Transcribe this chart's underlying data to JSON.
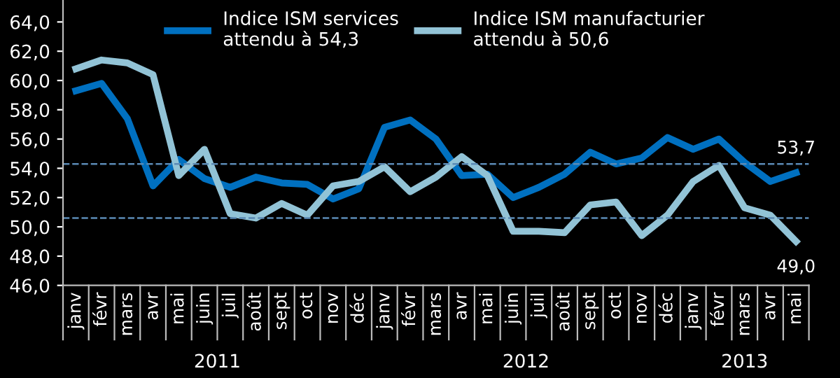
{
  "chart_data": {
    "type": "line",
    "categories": [
      "janv",
      "févr",
      "mars",
      "avr",
      "mai",
      "juin",
      "juil",
      "août",
      "sept",
      "oct",
      "nov",
      "déc",
      "janv",
      "févr",
      "mars",
      "avr",
      "mai",
      "juin",
      "juil",
      "août",
      "sept",
      "oct",
      "nov",
      "déc",
      "janv",
      "févr",
      "mars",
      "avr",
      "mai"
    ],
    "series": [
      {
        "name": "Indice ISM services\nattendu à 54,3",
        "color": "#0070c0",
        "values": [
          59.3,
          59.8,
          57.4,
          52.8,
          54.6,
          53.3,
          52.7,
          53.4,
          53.0,
          52.9,
          51.9,
          52.6,
          56.8,
          57.3,
          56.0,
          53.5,
          53.6,
          52.0,
          52.7,
          53.6,
          55.1,
          54.3,
          54.7,
          56.1,
          55.3,
          56.0,
          54.4,
          53.1,
          53.7
        ],
        "value_labels": [
          null,
          null,
          null,
          null,
          null,
          null,
          null,
          null,
          null,
          null,
          null,
          null,
          null,
          null,
          null,
          null,
          null,
          null,
          null,
          null,
          null,
          null,
          null,
          null,
          null,
          null,
          null,
          null,
          "53,7"
        ]
      },
      {
        "name": "Indice ISM manufacturier\nattendu à 50,6",
        "color": "#92c3d6",
        "values": [
          60.8,
          61.4,
          61.2,
          60.4,
          53.5,
          55.3,
          50.9,
          50.6,
          51.6,
          50.8,
          52.8,
          53.1,
          54.1,
          52.4,
          53.4,
          54.8,
          53.5,
          49.7,
          49.7,
          49.6,
          51.5,
          51.7,
          49.4,
          50.8,
          53.1,
          54.2,
          51.3,
          50.8,
          49.0
        ],
        "value_labels": [
          null,
          null,
          null,
          null,
          null,
          null,
          null,
          null,
          null,
          null,
          null,
          null,
          null,
          null,
          null,
          null,
          null,
          null,
          null,
          null,
          null,
          null,
          null,
          null,
          null,
          null,
          null,
          null,
          "49,0"
        ]
      }
    ],
    "ylim": [
      46,
      65.5
    ],
    "yticks": [
      {
        "value": 46,
        "label": "46,0"
      },
      {
        "value": 48,
        "label": "48,0"
      },
      {
        "value": 50,
        "label": "50,0"
      },
      {
        "value": 52,
        "label": "52,0"
      },
      {
        "value": 54,
        "label": "54,0"
      },
      {
        "value": 56,
        "label": "56,0"
      },
      {
        "value": 58,
        "label": "58,0"
      },
      {
        "value": 60,
        "label": "60,0"
      },
      {
        "value": 62,
        "label": "62,0"
      },
      {
        "value": 64,
        "label": "64,0"
      }
    ],
    "ref_lines": [
      {
        "axis": "y",
        "value": 54.3,
        "color": "#5b8ab5",
        "line_style": "dashed"
      },
      {
        "axis": "y",
        "value": 50.6,
        "color": "#5b8ab5",
        "line_style": "dashed"
      }
    ],
    "annotations": [
      "2011",
      "2012",
      "2013"
    ],
    "legend": "top",
    "grid": false,
    "marker": "none",
    "line_style": "solid"
  }
}
